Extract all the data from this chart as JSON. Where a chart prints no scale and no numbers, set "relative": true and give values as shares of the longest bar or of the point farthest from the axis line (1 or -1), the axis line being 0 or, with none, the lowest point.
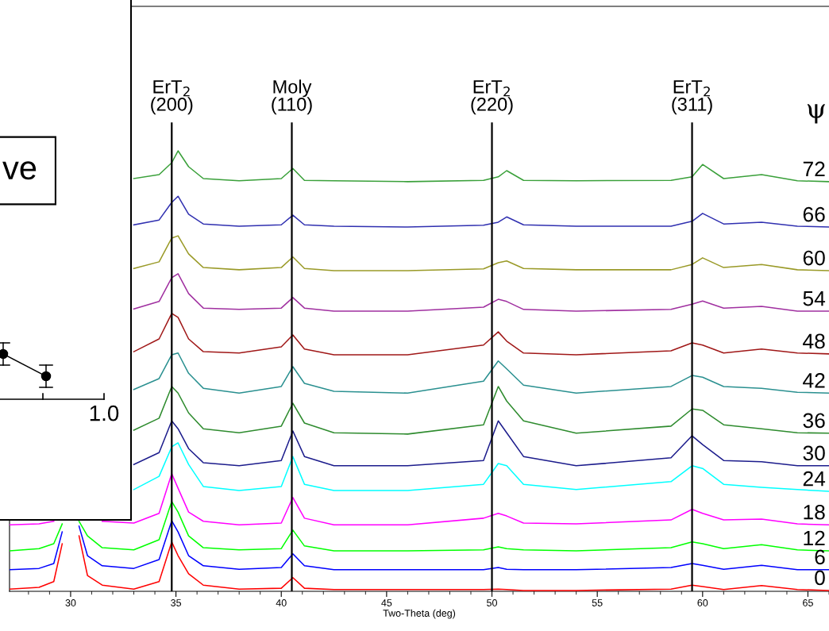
{
  "chart_data": [
    {
      "type": "line",
      "xlabel": "Two-Theta (deg)",
      "legend_title": "ψ",
      "relative": true,
      "line_style": "solid",
      "x": [
        27.1,
        28.5,
        29.2,
        29.6,
        30.0,
        30.4,
        30.8,
        31.5,
        33.0,
        34.2,
        34.8,
        35.1,
        35.6,
        36.3,
        38.0,
        40.0,
        40.55,
        41.1,
        42.5,
        46.0,
        49.6,
        50.3,
        50.7,
        51.5,
        54.0,
        58.5,
        59.5,
        60.0,
        61.0,
        62.8,
        64.5,
        66.0
      ],
      "xlim": [
        27.1,
        66.0
      ],
      "xticks": [
        30,
        35,
        40,
        45,
        50,
        55,
        60,
        65
      ],
      "ref_lines": [
        {
          "axis": "x",
          "value": 34.8,
          "label": "ErT$_{2}$\n(200)"
        },
        {
          "axis": "x",
          "value": 40.5,
          "label": "Moly\n(110)"
        },
        {
          "axis": "x",
          "value": 50.0,
          "label": "ErT$_{2}$\n(220)"
        },
        {
          "axis": "x",
          "value": 59.5,
          "label": "ErT$_{2}$\n(311)"
        }
      ],
      "series": [
        {
          "name": "0",
          "color": "#ff0000",
          "values": [
            0.005,
            0.009,
            0.022,
            0.108,
            null,
            0.126,
            0.036,
            0.014,
            0.005,
            0.022,
            0.112,
            0.081,
            0.04,
            0.014,
            0.005,
            0.007,
            0.031,
            0.007,
            0.004,
            0.004,
            0.004,
            0.005,
            0.004,
            0.002,
            0.002,
            0.005,
            0.014,
            0.011,
            0.004,
            0.013,
            0.004,
            0.002
          ]
        },
        {
          "name": "6",
          "color": "#0000ff",
          "values": [
            0.049,
            0.052,
            0.063,
            0.135,
            null,
            0.148,
            0.081,
            0.058,
            0.052,
            0.072,
            0.16,
            0.135,
            0.081,
            0.058,
            0.05,
            0.054,
            0.085,
            0.058,
            0.049,
            0.049,
            0.049,
            0.054,
            0.05,
            0.049,
            0.049,
            0.054,
            0.063,
            0.059,
            0.05,
            0.059,
            0.049,
            0.049
          ]
        },
        {
          "name": "12",
          "color": "#00ff00",
          "values": [
            0.092,
            0.097,
            0.108,
            0.153,
            null,
            0.159,
            0.126,
            0.099,
            0.094,
            0.117,
            0.204,
            0.18,
            0.126,
            0.099,
            0.094,
            0.097,
            0.139,
            0.103,
            0.092,
            0.092,
            0.094,
            0.101,
            0.097,
            0.094,
            0.092,
            0.099,
            0.112,
            0.108,
            0.097,
            0.106,
            0.094,
            0.092
          ]
        },
        {
          "name": "18",
          "color": "#ff00ff",
          "values": [
            0.151,
            0.153,
            0.159,
            null,
            null,
            null,
            null,
            0.159,
            0.155,
            0.177,
            0.267,
            0.234,
            0.18,
            0.159,
            0.151,
            0.155,
            0.213,
            0.166,
            0.151,
            0.151,
            0.166,
            0.177,
            0.171,
            0.155,
            0.153,
            0.162,
            0.186,
            0.177,
            0.162,
            0.164,
            0.153,
            0.151
          ]
        },
        {
          "name": "24",
          "color": "#00ffff",
          "values": [
            null,
            null,
            null,
            null,
            null,
            null,
            null,
            null,
            0.231,
            0.261,
            0.328,
            0.337,
            0.288,
            0.238,
            0.229,
            0.238,
            0.306,
            0.243,
            0.229,
            0.229,
            0.243,
            0.29,
            0.285,
            0.243,
            0.231,
            0.249,
            0.285,
            0.279,
            0.243,
            0.236,
            0.231,
            0.227
          ]
        },
        {
          "name": "30",
          "color": "#1c1c8c",
          "values": [
            null,
            null,
            null,
            null,
            null,
            null,
            null,
            null,
            0.288,
            0.315,
            0.387,
            0.369,
            0.324,
            0.292,
            0.285,
            0.297,
            0.364,
            0.306,
            0.285,
            0.285,
            0.297,
            0.387,
            0.36,
            0.306,
            0.285,
            0.303,
            0.353,
            0.333,
            0.297,
            0.294,
            0.285,
            0.285
          ]
        },
        {
          "name": "36",
          "color": "#2e8b2e",
          "values": [
            null,
            null,
            null,
            null,
            null,
            null,
            null,
            null,
            0.366,
            0.393,
            0.465,
            0.45,
            0.405,
            0.369,
            0.36,
            0.375,
            0.427,
            0.382,
            0.36,
            0.357,
            0.378,
            0.465,
            0.432,
            0.387,
            0.359,
            0.375,
            0.414,
            0.411,
            0.378,
            0.369,
            0.36,
            0.359
          ]
        },
        {
          "name": "42",
          "color": "#2a9090",
          "values": [
            null,
            null,
            null,
            null,
            null,
            null,
            null,
            null,
            0.458,
            0.483,
            0.537,
            0.541,
            0.495,
            0.461,
            0.45,
            0.465,
            0.51,
            0.472,
            0.454,
            0.45,
            0.477,
            0.523,
            0.505,
            0.468,
            0.45,
            0.465,
            0.49,
            0.486,
            0.465,
            0.461,
            0.452,
            0.45
          ]
        },
        {
          "name": "48",
          "color": "#a01818",
          "values": [
            null,
            null,
            null,
            null,
            null,
            null,
            null,
            null,
            0.544,
            0.573,
            0.631,
            0.622,
            0.573,
            0.544,
            0.541,
            0.555,
            0.582,
            0.55,
            0.537,
            0.537,
            0.559,
            0.589,
            0.568,
            0.541,
            0.537,
            0.546,
            0.564,
            0.559,
            0.541,
            0.55,
            0.541,
            0.539
          ]
        },
        {
          "name": "54",
          "color": "#a030a0",
          "values": [
            null,
            null,
            null,
            null,
            null,
            null,
            null,
            null,
            0.641,
            0.658,
            0.712,
            0.721,
            0.676,
            0.643,
            0.64,
            0.643,
            0.667,
            0.643,
            0.636,
            0.636,
            0.645,
            0.663,
            0.658,
            0.64,
            0.636,
            0.64,
            0.652,
            0.659,
            0.643,
            0.647,
            0.636,
            0.636
          ]
        },
        {
          "name": "60",
          "color": "#9a9a28",
          "values": [
            null,
            null,
            null,
            null,
            null,
            null,
            null,
            null,
            0.733,
            0.748,
            0.802,
            0.807,
            0.766,
            0.735,
            0.73,
            0.735,
            0.759,
            0.733,
            0.728,
            0.728,
            0.732,
            0.746,
            0.75,
            0.733,
            0.73,
            0.73,
            0.742,
            0.757,
            0.735,
            0.742,
            0.73,
            0.728
          ]
        },
        {
          "name": "66",
          "color": "#3030b0",
          "values": [
            null,
            null,
            null,
            null,
            null,
            null,
            null,
            null,
            0.832,
            0.843,
            0.883,
            0.897,
            0.856,
            0.834,
            0.829,
            0.832,
            0.854,
            0.832,
            0.829,
            0.827,
            0.831,
            0.838,
            0.85,
            0.832,
            0.829,
            0.829,
            0.84,
            0.858,
            0.834,
            0.838,
            0.829,
            0.827
          ]
        },
        {
          "name": "72",
          "color": "#3aa03a",
          "values": [
            null,
            null,
            null,
            null,
            null,
            null,
            null,
            null,
            0.937,
            0.946,
            0.973,
            1.0,
            0.964,
            0.937,
            0.932,
            0.937,
            0.96,
            0.933,
            0.932,
            0.93,
            0.933,
            0.941,
            0.955,
            0.933,
            0.932,
            0.933,
            0.941,
            0.969,
            0.937,
            0.946,
            0.932,
            0.93
          ]
        }
      ]
    },
    {
      "type": "other",
      "annotations": [
        "ve",
        "1.0"
      ]
    }
  ]
}
